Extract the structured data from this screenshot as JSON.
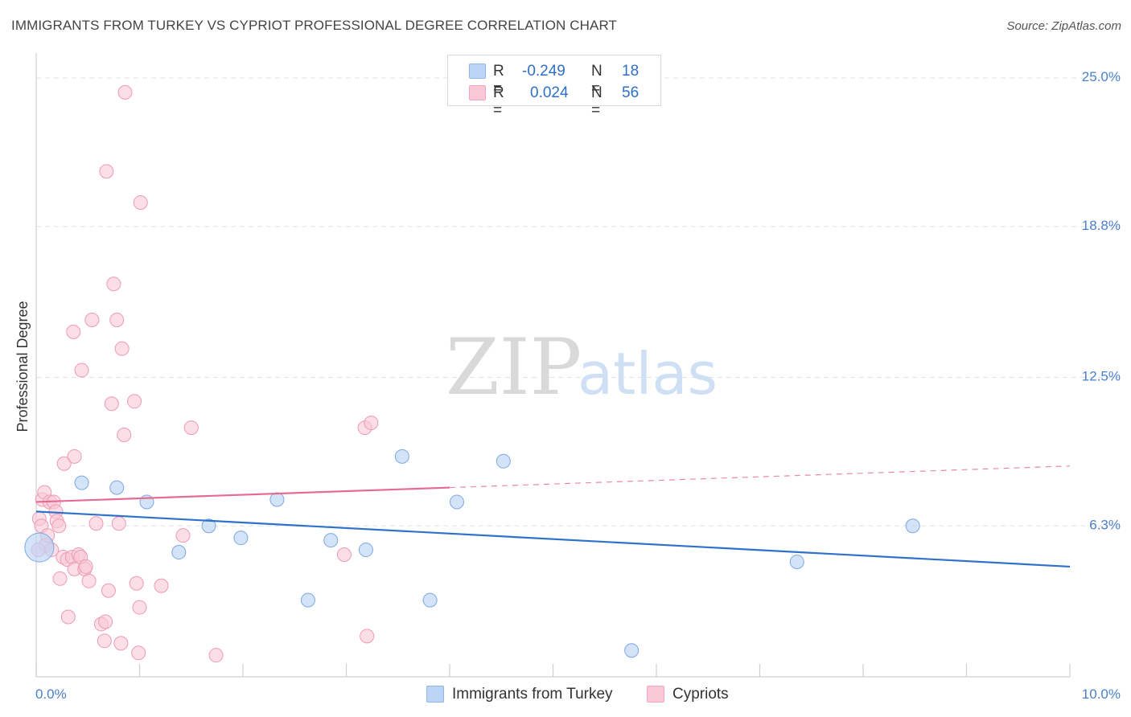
{
  "header": {
    "title": "IMMIGRANTS FROM TURKEY VS CYPRIOT PROFESSIONAL DEGREE CORRELATION CHART",
    "source": "Source: ZipAtlas.com"
  },
  "watermark": {
    "zip": "ZIP",
    "atlas": "atlas"
  },
  "legend": {
    "rows": [
      {
        "r_label": "R =",
        "r_value": "-0.249",
        "n_label": "N =",
        "n_value": "18",
        "color": "#8fb6ea"
      },
      {
        "r_label": "R =",
        "r_value": "0.024",
        "n_label": "N =",
        "n_value": "56",
        "color": "#f4a7bf"
      }
    ]
  },
  "colors": {
    "series_a_fill": "#bcd4f5",
    "series_a_stroke": "#7ea8e0",
    "series_a_line": "#2f72cc",
    "series_b_fill": "#f9c8d6",
    "series_b_stroke": "#ee9ab4",
    "series_b_line": "#e66b91",
    "tick_text": "#4a7fcc",
    "grid": "#e2e2e2"
  },
  "chart_data": {
    "type": "scatter",
    "title": "IMMIGRANTS FROM TURKEY VS CYPRIOT PROFESSIONAL DEGREE CORRELATION CHART",
    "xlabel": "",
    "ylabel": "Professional Degree",
    "xlim": [
      0,
      10
    ],
    "ylim": [
      0,
      25.0
    ],
    "x_tick_labels": [
      "0.0%",
      "10.0%"
    ],
    "y_ticks": [
      6.3,
      12.5,
      18.8,
      25.0
    ],
    "y_tick_labels": [
      "6.3%",
      "12.5%",
      "18.8%",
      "25.0%"
    ],
    "grid": true,
    "legend_position": "top-center",
    "series": [
      {
        "name": "Immigrants from Turkey",
        "r": -0.249,
        "n": 18,
        "points": [
          {
            "x": 0.03,
            "y": 5.4,
            "big": true
          },
          {
            "x": 0.44,
            "y": 8.1
          },
          {
            "x": 0.78,
            "y": 7.9
          },
          {
            "x": 1.07,
            "y": 7.3
          },
          {
            "x": 1.38,
            "y": 5.2
          },
          {
            "x": 1.67,
            "y": 6.3
          },
          {
            "x": 1.98,
            "y": 5.8
          },
          {
            "x": 2.33,
            "y": 7.4
          },
          {
            "x": 2.63,
            "y": 3.2
          },
          {
            "x": 2.85,
            "y": 5.7
          },
          {
            "x": 3.19,
            "y": 5.3
          },
          {
            "x": 3.54,
            "y": 9.2
          },
          {
            "x": 3.81,
            "y": 3.2
          },
          {
            "x": 4.07,
            "y": 7.3
          },
          {
            "x": 4.52,
            "y": 9.0
          },
          {
            "x": 5.76,
            "y": 1.1
          },
          {
            "x": 7.36,
            "y": 4.8
          },
          {
            "x": 8.48,
            "y": 6.3
          }
        ],
        "trend": {
          "x0": 0,
          "y0": 6.9,
          "x1": 10,
          "y1": 4.6,
          "dashed_from": null
        }
      },
      {
        "name": "Cypriots",
        "r": 0.024,
        "n": 56,
        "points": [
          {
            "x": 0.03,
            "y": 6.6
          },
          {
            "x": 0.05,
            "y": 6.3
          },
          {
            "x": 0.06,
            "y": 7.4
          },
          {
            "x": 0.08,
            "y": 7.7
          },
          {
            "x": 0.09,
            "y": 5.5
          },
          {
            "x": 0.11,
            "y": 5.9
          },
          {
            "x": 0.13,
            "y": 7.3
          },
          {
            "x": 0.15,
            "y": 5.3
          },
          {
            "x": 0.17,
            "y": 7.3
          },
          {
            "x": 0.19,
            "y": 6.9
          },
          {
            "x": 0.2,
            "y": 6.5
          },
          {
            "x": 0.22,
            "y": 6.3
          },
          {
            "x": 0.23,
            "y": 4.1
          },
          {
            "x": 0.26,
            "y": 5.0
          },
          {
            "x": 0.27,
            "y": 8.9
          },
          {
            "x": 0.3,
            "y": 4.9
          },
          {
            "x": 0.31,
            "y": 2.5
          },
          {
            "x": 0.35,
            "y": 5.0
          },
          {
            "x": 0.36,
            "y": 14.4
          },
          {
            "x": 0.37,
            "y": 4.5
          },
          {
            "x": 0.37,
            "y": 9.2
          },
          {
            "x": 0.41,
            "y": 5.1
          },
          {
            "x": 0.43,
            "y": 5.0
          },
          {
            "x": 0.44,
            "y": 12.8
          },
          {
            "x": 0.47,
            "y": 4.5
          },
          {
            "x": 0.48,
            "y": 4.6
          },
          {
            "x": 0.51,
            "y": 4.0
          },
          {
            "x": 0.54,
            "y": 14.9
          },
          {
            "x": 0.58,
            "y": 6.4
          },
          {
            "x": 0.63,
            "y": 2.2
          },
          {
            "x": 0.66,
            "y": 1.5
          },
          {
            "x": 0.67,
            "y": 2.3
          },
          {
            "x": 0.68,
            "y": 21.1
          },
          {
            "x": 0.7,
            "y": 3.6
          },
          {
            "x": 0.73,
            "y": 11.4
          },
          {
            "x": 0.75,
            "y": 16.4
          },
          {
            "x": 0.78,
            "y": 14.9
          },
          {
            "x": 0.8,
            "y": 6.4
          },
          {
            "x": 0.82,
            "y": 1.4
          },
          {
            "x": 0.83,
            "y": 13.7
          },
          {
            "x": 0.85,
            "y": 10.1
          },
          {
            "x": 0.86,
            "y": 24.4
          },
          {
            "x": 0.95,
            "y": 11.5
          },
          {
            "x": 0.97,
            "y": 3.9
          },
          {
            "x": 0.99,
            "y": 1.0
          },
          {
            "x": 1.0,
            "y": 2.9
          },
          {
            "x": 1.01,
            "y": 19.8
          },
          {
            "x": 1.21,
            "y": 3.8
          },
          {
            "x": 1.42,
            "y": 5.9
          },
          {
            "x": 1.5,
            "y": 10.4
          },
          {
            "x": 1.74,
            "y": 0.9
          },
          {
            "x": 2.98,
            "y": 5.1
          },
          {
            "x": 3.18,
            "y": 10.4
          },
          {
            "x": 3.2,
            "y": 1.7
          },
          {
            "x": 3.24,
            "y": 10.6
          },
          {
            "x": 0.02,
            "y": 5.3
          }
        ],
        "trend": {
          "x0": 0,
          "y0": 7.3,
          "x1": 10,
          "y1": 8.8,
          "dashed_from": 4.0
        }
      }
    ]
  },
  "bottom_legend": [
    {
      "label": "Immigrants from Turkey"
    },
    {
      "label": "Cypriots"
    }
  ]
}
